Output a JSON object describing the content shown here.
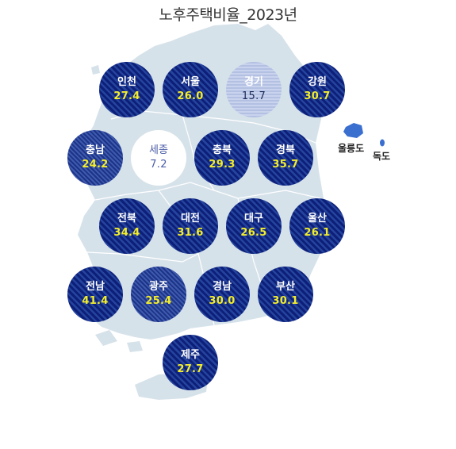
{
  "title": "노후주택비율_2023년",
  "colors": {
    "land": "#d6e2ea",
    "island_marker": "#3a6fd0",
    "yellow_value": "#f4ee2a"
  },
  "regions": [
    {
      "id": "incheon",
      "name": "인천",
      "value": "27.4",
      "level": "high"
    },
    {
      "id": "seoul",
      "name": "서울",
      "value": "26.0",
      "level": "high"
    },
    {
      "id": "gyeonggi",
      "name": "경기",
      "value": "15.7",
      "level": "low"
    },
    {
      "id": "gangwon",
      "name": "강원",
      "value": "30.7",
      "level": "high"
    },
    {
      "id": "chungnam",
      "name": "충남",
      "value": "24.2",
      "level": "mid"
    },
    {
      "id": "sejong",
      "name": "세종",
      "value": "7.2",
      "level": "none"
    },
    {
      "id": "chungbuk",
      "name": "충북",
      "value": "29.3",
      "level": "high"
    },
    {
      "id": "gyeongbuk",
      "name": "경북",
      "value": "35.7",
      "level": "high"
    },
    {
      "id": "jeonbuk",
      "name": "전북",
      "value": "34.4",
      "level": "high"
    },
    {
      "id": "daejeon",
      "name": "대전",
      "value": "31.6",
      "level": "high"
    },
    {
      "id": "daegu",
      "name": "대구",
      "value": "26.5",
      "level": "high"
    },
    {
      "id": "ulsan",
      "name": "울산",
      "value": "26.1",
      "level": "high"
    },
    {
      "id": "jeonnam",
      "name": "전남",
      "value": "41.4",
      "level": "high"
    },
    {
      "id": "gwangju",
      "name": "광주",
      "value": "25.4",
      "level": "mid"
    },
    {
      "id": "gyeongnam",
      "name": "경남",
      "value": "30.0",
      "level": "high"
    },
    {
      "id": "busan",
      "name": "부산",
      "value": "30.1",
      "level": "high"
    },
    {
      "id": "jeju",
      "name": "제주",
      "value": "27.7",
      "level": "high"
    }
  ],
  "islands": {
    "ulleungdo": "울릉도",
    "dokdo": "독도"
  }
}
